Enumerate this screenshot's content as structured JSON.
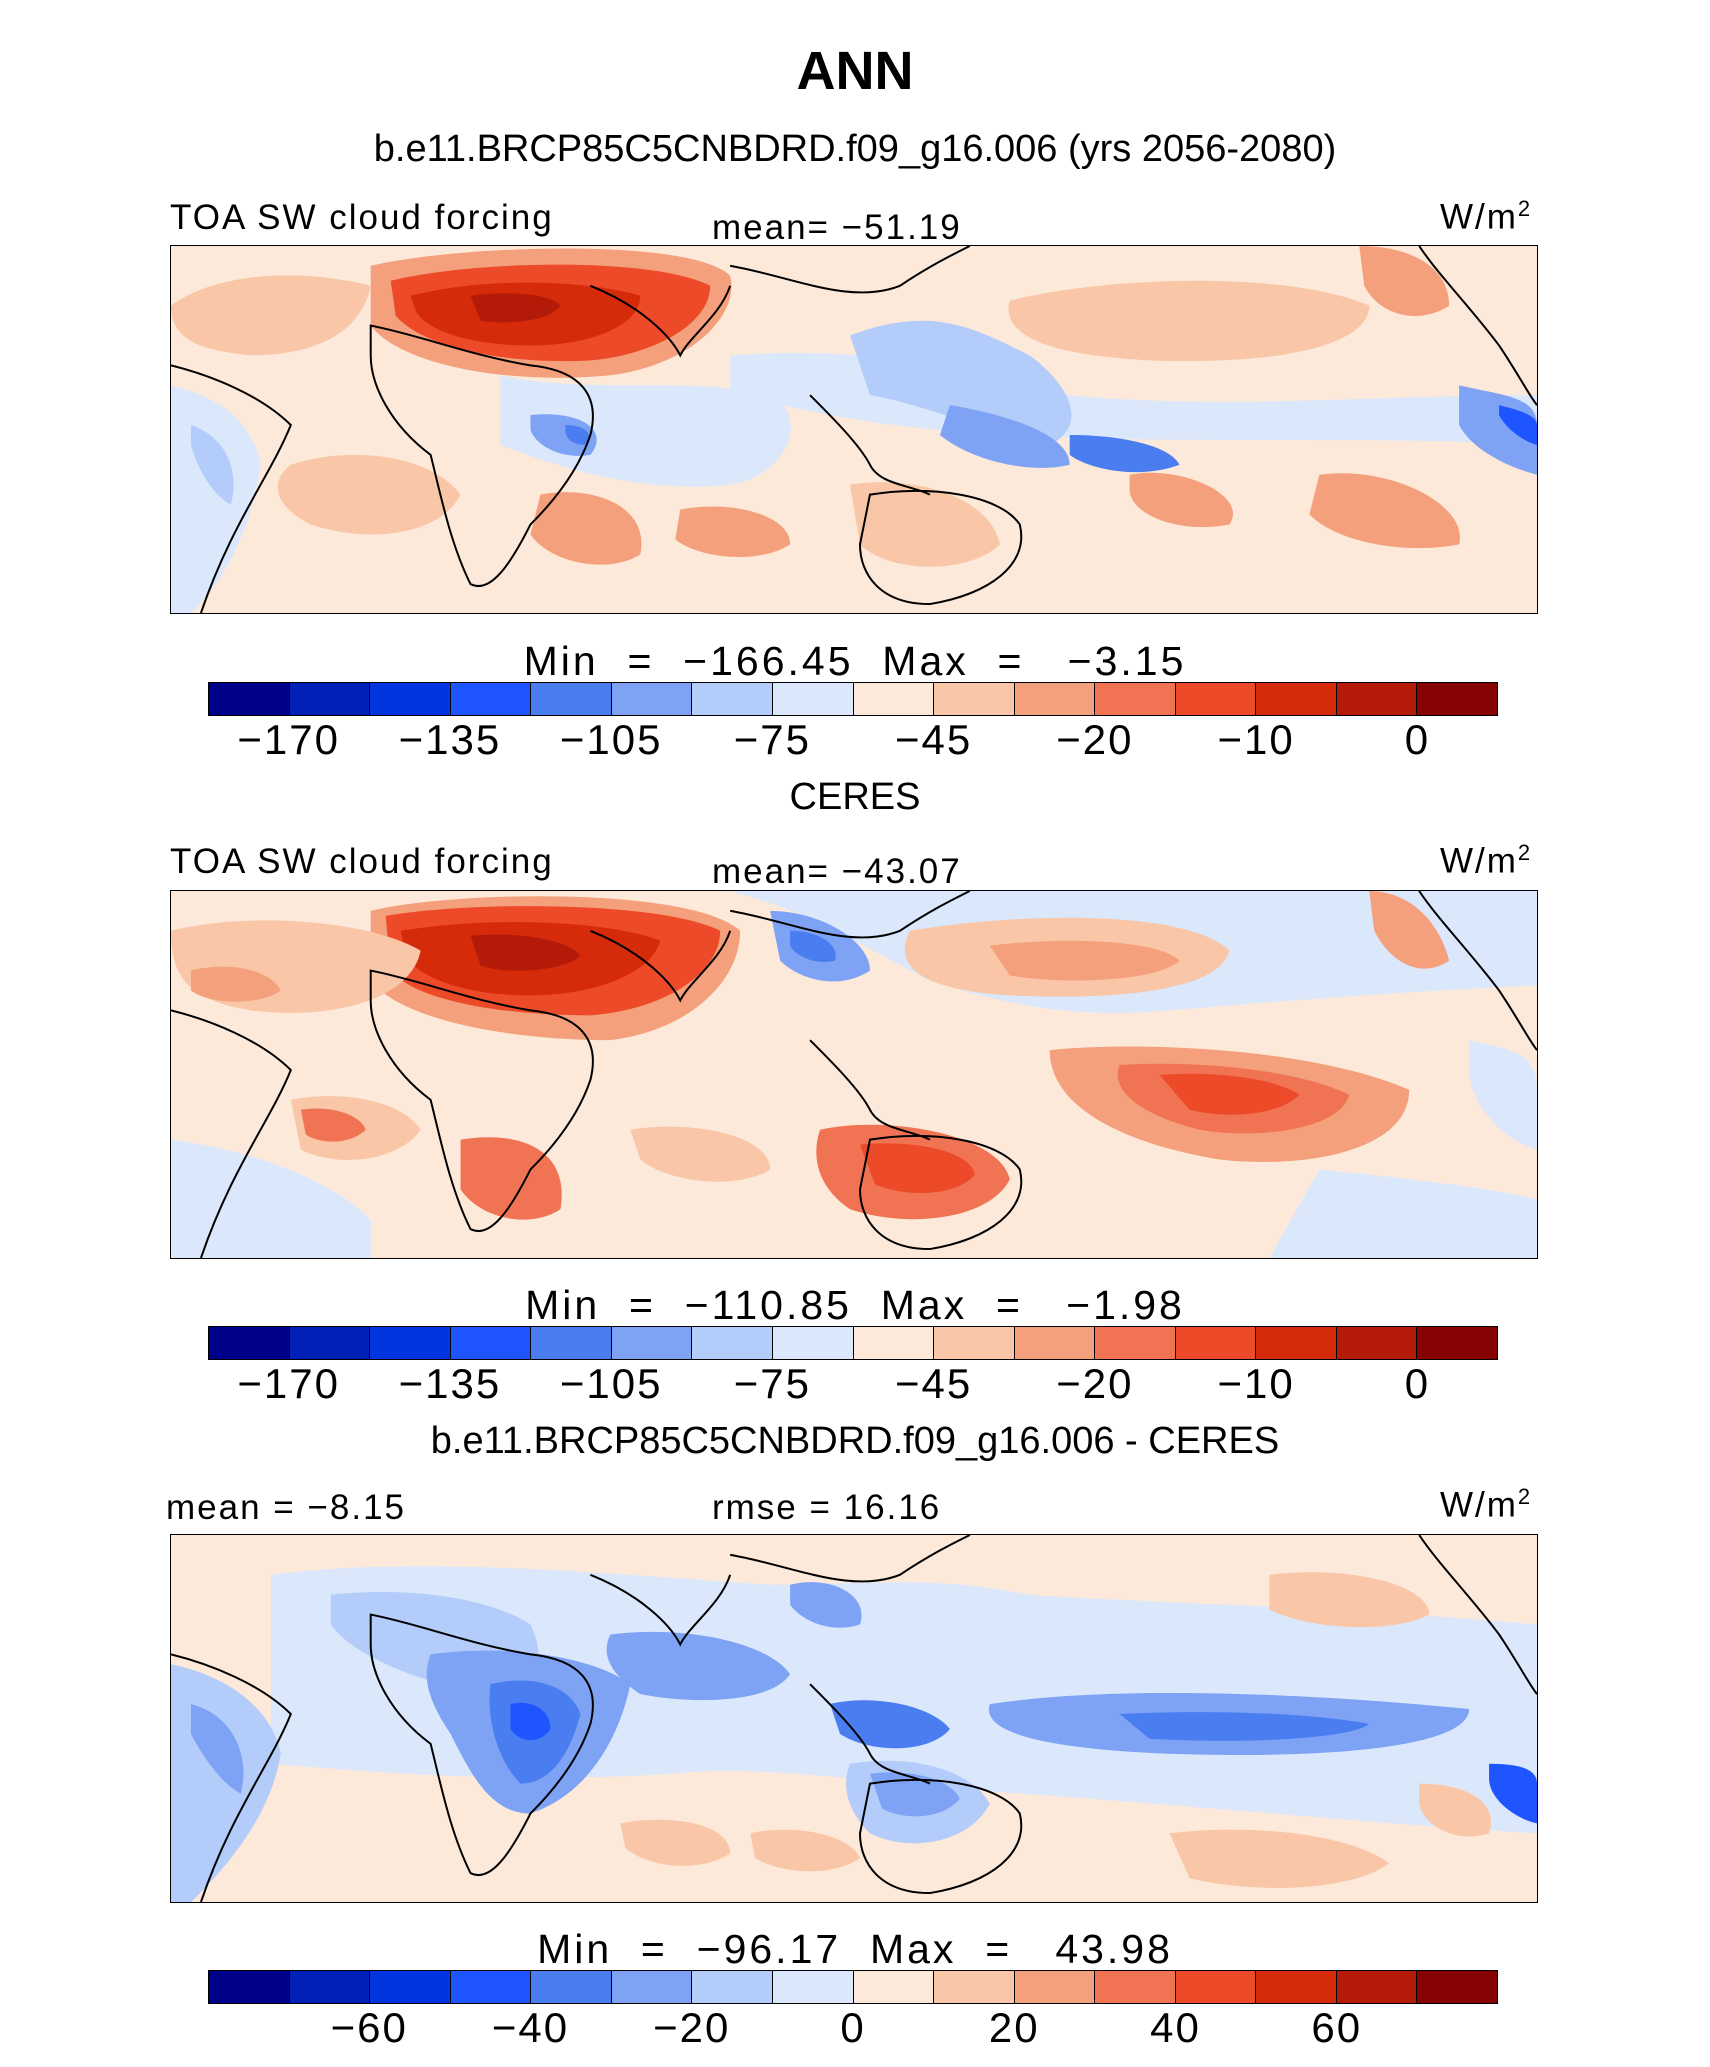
{
  "figure": {
    "title": "ANN"
  },
  "colorbar_colors": [
    "#00008a",
    "#0020b8",
    "#0035e0",
    "#1f55ff",
    "#4a7df0",
    "#7ea3f5",
    "#b3ccfa",
    "#dbe8fc",
    "#fde9d9",
    "#f9c6a8",
    "#f4a07c",
    "#f07454",
    "#ec4a28",
    "#d62b0a",
    "#b31a07",
    "#870303"
  ],
  "panels": [
    {
      "title": "b.e11.BRCP85C5CNBDRD.f09_g16.006 (yrs 2056-2080)",
      "left_label": "TOA SW cloud forcing",
      "center_label": "mean=  −51.19",
      "units_base": "W/m",
      "units_sup": "2",
      "minmax": "Min  =  −166.45  Max  =   −3.15",
      "ticks": [
        "−170",
        "−135",
        "−105",
        "−75",
        "−45",
        "−20",
        "−10",
        "0"
      ],
      "map_theme": "model"
    },
    {
      "title": "CERES",
      "left_label": "TOA SW cloud forcing",
      "center_label": "mean=  −43.07",
      "units_base": "W/m",
      "units_sup": "2",
      "minmax": "Min  =  −110.85  Max  =   −1.98",
      "ticks": [
        "−170",
        "−135",
        "−105",
        "−75",
        "−45",
        "−20",
        "−10",
        "0"
      ],
      "map_theme": "obs"
    },
    {
      "title": "b.e11.BRCP85C5CNBDRD.f09_g16.006 - CERES",
      "left_label": "mean =   −8.15",
      "center_label": "rmse =   16.16",
      "units_base": "W/m",
      "units_sup": "2",
      "minmax": "Min  =  −96.17  Max  =   43.98",
      "ticks": [
        "−60",
        "−40",
        "−20",
        "0",
        "20",
        "40",
        "60"
      ],
      "map_theme": "diff"
    }
  ]
}
